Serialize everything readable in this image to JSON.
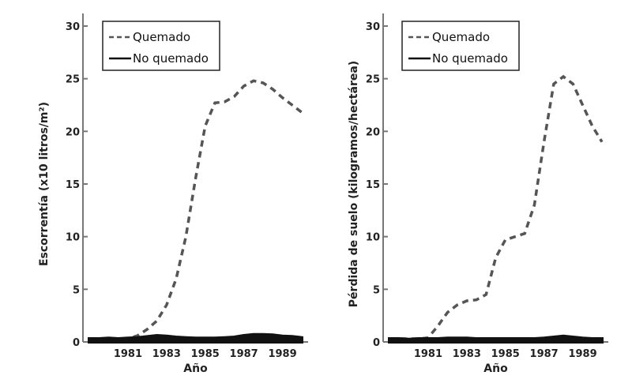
{
  "chart_data": [
    {
      "type": "line",
      "title": "",
      "xlabel": "Año",
      "ylabel": "Escorrentía (x10 litros/m²)",
      "ylim": [
        0,
        30
      ],
      "yticks": [
        0,
        5,
        10,
        15,
        20,
        25,
        30
      ],
      "xtick_labels": [
        "1981",
        "1983",
        "1985",
        "1987",
        "1989"
      ],
      "legend": {
        "placement": "top-left",
        "entries": [
          "Quemado",
          "No quemado"
        ]
      },
      "series": [
        {
          "name": "Quemado",
          "style": "dashed",
          "color": "#555555",
          "x": [
            0,
            0.5,
            1.0,
            1.5,
            2.0,
            2.5,
            3.0,
            3.5,
            4.0,
            4.5,
            5.0,
            5.5,
            6.0,
            6.5,
            7.0,
            7.5,
            8.0,
            8.5,
            9.0,
            9.5,
            10.0,
            10.5,
            11.0
          ],
          "values": [
            0.3,
            0.3,
            0.3,
            0.3,
            0.3,
            0.6,
            1.2,
            2.0,
            3.5,
            6.0,
            10.0,
            15.5,
            20.5,
            22.7,
            22.8,
            23.3,
            24.3,
            24.8,
            24.6,
            24.0,
            23.2,
            22.5,
            21.8
          ]
        },
        {
          "name": "No quemado",
          "style": "solid",
          "color": "#111111",
          "x": [
            0,
            0.5,
            1.0,
            1.5,
            2.0,
            2.5,
            3.0,
            3.5,
            4.0,
            4.5,
            5.0,
            5.5,
            6.0,
            6.5,
            7.0,
            7.5,
            8.0,
            8.5,
            9.0,
            9.5,
            10.0,
            10.5,
            11.0
          ],
          "values": [
            0.3,
            0.3,
            0.35,
            0.3,
            0.35,
            0.4,
            0.5,
            0.6,
            0.55,
            0.45,
            0.4,
            0.35,
            0.35,
            0.35,
            0.4,
            0.45,
            0.6,
            0.7,
            0.7,
            0.65,
            0.55,
            0.5,
            0.4
          ]
        }
      ]
    },
    {
      "type": "line",
      "title": "",
      "xlabel": "Año",
      "ylabel": "Pérdida de suelo (kilogramos/hectárea)",
      "ylim": [
        0,
        30
      ],
      "yticks": [
        0,
        5,
        10,
        15,
        20,
        25,
        30
      ],
      "xtick_labels": [
        "1981",
        "1983",
        "1985",
        "1987",
        "1989"
      ],
      "legend": {
        "placement": "top-left",
        "entries": [
          "Quemado",
          "No quemado"
        ]
      },
      "series": [
        {
          "name": "Quemado",
          "style": "dashed",
          "color": "#555555",
          "x": [
            0,
            0.5,
            1.0,
            1.5,
            2.0,
            2.5,
            3.0,
            3.5,
            4.0,
            4.5,
            5.0,
            5.5,
            6.0,
            6.5,
            7.0,
            7.5,
            8.0,
            8.5,
            9.0,
            9.5,
            10.0,
            10.5,
            11.0
          ],
          "values": [
            0.3,
            0.3,
            0.3,
            0.3,
            0.4,
            1.5,
            2.8,
            3.5,
            3.9,
            4.0,
            4.5,
            8.0,
            9.7,
            10.0,
            10.3,
            13.0,
            19.0,
            24.5,
            25.2,
            24.5,
            22.5,
            20.5,
            19.0
          ]
        },
        {
          "name": "No quemado",
          "style": "solid",
          "color": "#111111",
          "x": [
            0,
            0.5,
            1.0,
            1.5,
            2.0,
            2.5,
            3.0,
            3.5,
            4.0,
            4.5,
            5.0,
            5.5,
            6.0,
            6.5,
            7.0,
            7.5,
            8.0,
            8.5,
            9.0,
            9.5,
            10.0,
            10.5,
            11.0
          ],
          "values": [
            0.3,
            0.3,
            0.25,
            0.3,
            0.3,
            0.3,
            0.35,
            0.35,
            0.35,
            0.3,
            0.3,
            0.3,
            0.3,
            0.3,
            0.3,
            0.3,
            0.35,
            0.45,
            0.55,
            0.45,
            0.35,
            0.3,
            0.3
          ]
        }
      ]
    }
  ]
}
